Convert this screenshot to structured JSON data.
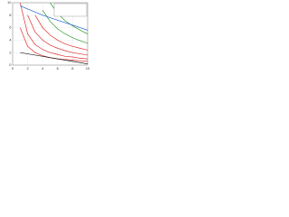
{
  "chart_data": {
    "type": "line",
    "x": [
      1,
      2,
      3,
      4,
      5,
      6,
      7,
      8,
      9,
      10
    ],
    "xlim": [
      0,
      10
    ],
    "xticks": [
      0,
      2,
      4,
      6,
      8,
      10
    ],
    "ylim": [
      0,
      10
    ],
    "yticks": [
      0,
      2,
      4,
      6,
      8,
      10
    ],
    "grid": true,
    "series": [
      {
        "color": "#e03030",
        "values": [
          6,
          3,
          2,
          1.5,
          1.2,
          1,
          0.9,
          0.8,
          0.7,
          0.6
        ]
      },
      {
        "color": "#e03030",
        "values": [
          10,
          5,
          3.3,
          2.5,
          2,
          1.7,
          1.4,
          1.3,
          1.1,
          1
        ]
      },
      {
        "color": "#e03030",
        "values": [
          null,
          8,
          5.3,
          4,
          3.2,
          2.7,
          2.3,
          2,
          1.8,
          1.6
        ]
      },
      {
        "color": "#e03030",
        "values": [
          null,
          null,
          8,
          6,
          4.8,
          4,
          3.4,
          3,
          2.7,
          2.4
        ]
      },
      {
        "color": "#2a9a2a",
        "values": [
          null,
          null,
          null,
          8.8,
          7,
          5.8,
          5,
          4.4,
          3.9,
          3.5
        ]
      },
      {
        "color": "#2a9a2a",
        "values": [
          null,
          null,
          null,
          null,
          10,
          8.3,
          7.1,
          6.3,
          5.6,
          5
        ]
      },
      {
        "color": "#2060d0",
        "values": [
          9.5,
          9,
          8.5,
          8,
          7.6,
          7.2,
          6.8,
          6.4,
          6,
          5.6
        ]
      },
      {
        "color": "#222222",
        "values": [
          2,
          1.8,
          1.6,
          1.4,
          1.2,
          1,
          0.8,
          0.6,
          0.4,
          0.2
        ]
      }
    ]
  }
}
